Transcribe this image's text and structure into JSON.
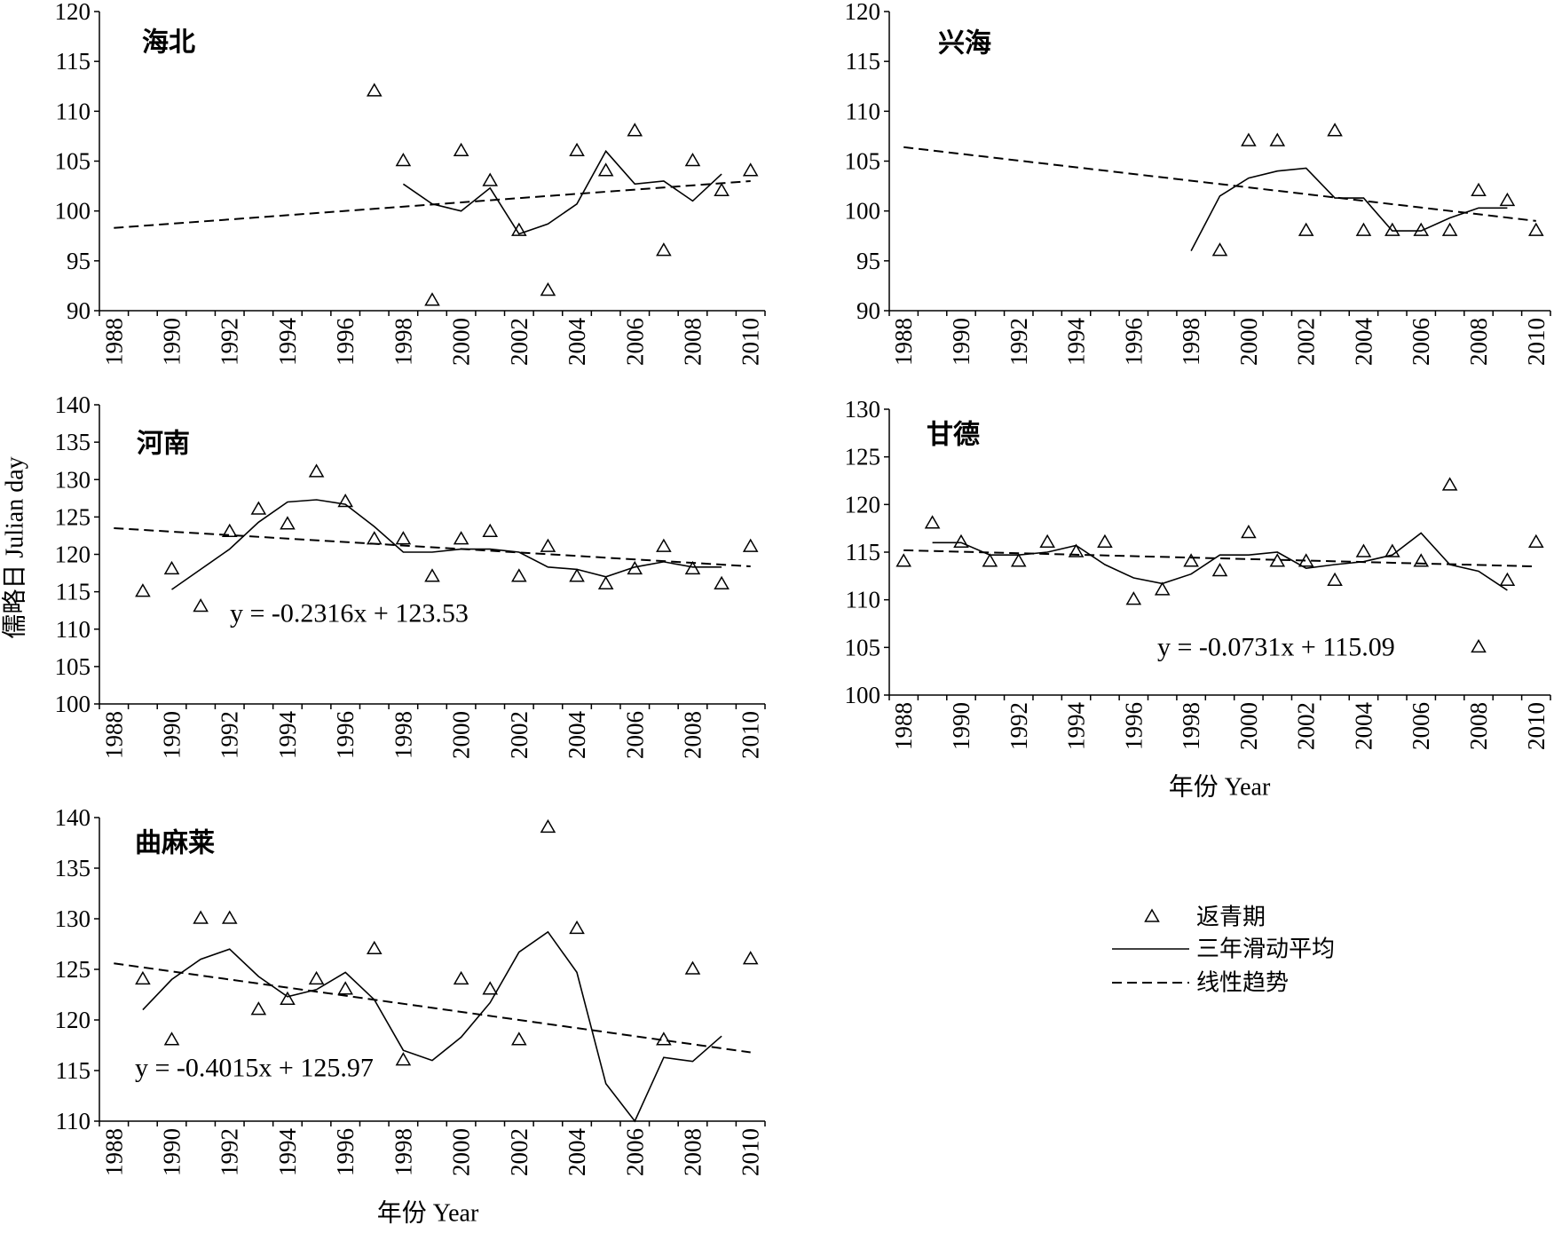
{
  "chart_data": [
    {
      "type": "line",
      "title": "海北",
      "x": [
        1988,
        1989,
        1990,
        1991,
        1992,
        1993,
        1994,
        1995,
        1996,
        1997,
        1998,
        1999,
        2000,
        2001,
        2002,
        2003,
        2004,
        2005,
        2006,
        2007,
        2008,
        2009,
        2010
      ],
      "xticks": [
        1988,
        1990,
        1992,
        1994,
        1996,
        1998,
        2000,
        2002,
        2004,
        2006,
        2008,
        2010
      ],
      "ylim": [
        90,
        120
      ],
      "yticks": [
        90,
        95,
        100,
        105,
        110,
        115,
        120
      ],
      "grid": false,
      "series": [
        {
          "legend_index": 0,
          "values": [
            null,
            null,
            null,
            null,
            null,
            null,
            null,
            null,
            null,
            112,
            105,
            91,
            106,
            103,
            98,
            92,
            106,
            104,
            108,
            96,
            105,
            102,
            104
          ]
        },
        {
          "legend_index": 1,
          "values": [
            null,
            null,
            null,
            null,
            null,
            null,
            null,
            null,
            null,
            null,
            102.7,
            100.7,
            100.0,
            102.3,
            97.7,
            98.7,
            100.7,
            106.0,
            102.7,
            103.0,
            101.0,
            103.7,
            null
          ]
        },
        {
          "legend_index": 2,
          "x": [
            1988,
            2010
          ],
          "values": [
            98.3,
            103.0
          ]
        }
      ]
    },
    {
      "type": "line",
      "title": "兴海",
      "x": [
        1988,
        1989,
        1990,
        1991,
        1992,
        1993,
        1994,
        1995,
        1996,
        1997,
        1998,
        1999,
        2000,
        2001,
        2002,
        2003,
        2004,
        2005,
        2006,
        2007,
        2008,
        2009,
        2010
      ],
      "xticks": [
        1988,
        1990,
        1992,
        1994,
        1996,
        1998,
        2000,
        2002,
        2004,
        2006,
        2008,
        2010
      ],
      "ylim": [
        90,
        120
      ],
      "yticks": [
        90,
        95,
        100,
        105,
        110,
        115,
        120
      ],
      "grid": false,
      "series": [
        {
          "legend_index": 0,
          "values": [
            null,
            null,
            null,
            null,
            null,
            null,
            null,
            null,
            null,
            null,
            null,
            96,
            107,
            107,
            98,
            108,
            98,
            98,
            98,
            98,
            102,
            101,
            98
          ]
        },
        {
          "legend_index": 1,
          "values": [
            null,
            null,
            null,
            null,
            null,
            null,
            null,
            null,
            null,
            null,
            96.0,
            101.5,
            103.3,
            104.0,
            104.3,
            101.3,
            101.3,
            98.0,
            98.0,
            99.3,
            100.3,
            100.3,
            null
          ]
        },
        {
          "legend_index": 2,
          "x": [
            1988,
            2010
          ],
          "values": [
            106.4,
            99.0
          ]
        }
      ]
    },
    {
      "type": "line",
      "title": "河南",
      "x": [
        1988,
        1989,
        1990,
        1991,
        1992,
        1993,
        1994,
        1995,
        1996,
        1997,
        1998,
        1999,
        2000,
        2001,
        2002,
        2003,
        2004,
        2005,
        2006,
        2007,
        2008,
        2009,
        2010
      ],
      "xticks": [
        1988,
        1990,
        1992,
        1994,
        1996,
        1998,
        2000,
        2002,
        2004,
        2006,
        2008,
        2010
      ],
      "ylim": [
        100,
        140
      ],
      "yticks": [
        100,
        105,
        110,
        115,
        120,
        125,
        130,
        135,
        140
      ],
      "grid": false,
      "ylabel": "儒略日 Julian day",
      "equation": "y = -0.2316x + 123.53",
      "series": [
        {
          "legend_index": 0,
          "values": [
            null,
            115,
            118,
            113,
            123,
            126,
            124,
            131,
            127,
            122,
            122,
            117,
            122,
            123,
            117,
            121,
            117,
            116,
            118,
            121,
            118,
            116,
            121
          ]
        },
        {
          "legend_index": 1,
          "values": [
            null,
            null,
            115.3,
            118.0,
            120.7,
            124.3,
            127.0,
            127.3,
            126.7,
            123.7,
            120.3,
            120.3,
            120.7,
            120.7,
            120.3,
            118.3,
            118.0,
            117.0,
            118.3,
            119.0,
            118.3,
            118.3,
            null
          ]
        },
        {
          "legend_index": 2,
          "x": [
            1988,
            2010
          ],
          "values": [
            123.5,
            118.4
          ]
        }
      ]
    },
    {
      "type": "line",
      "title": "甘德",
      "x": [
        1988,
        1989,
        1990,
        1991,
        1992,
        1993,
        1994,
        1995,
        1996,
        1997,
        1998,
        1999,
        2000,
        2001,
        2002,
        2003,
        2004,
        2005,
        2006,
        2007,
        2008,
        2009,
        2010
      ],
      "xticks": [
        1988,
        1990,
        1992,
        1994,
        1996,
        1998,
        2000,
        2002,
        2004,
        2006,
        2008,
        2010
      ],
      "ylim": [
        100,
        130
      ],
      "yticks": [
        100,
        105,
        110,
        115,
        120,
        125,
        130
      ],
      "grid": false,
      "xlabel": "年份 Year",
      "equation": "y = -0.0731x + 115.09",
      "series": [
        {
          "legend_index": 0,
          "values": [
            114,
            118,
            116,
            114,
            114,
            116,
            115,
            116,
            110,
            111,
            114,
            113,
            117,
            114,
            114,
            112,
            115,
            115,
            114,
            122,
            105,
            112,
            116
          ]
        },
        {
          "legend_index": 1,
          "values": [
            null,
            116.0,
            116.0,
            114.7,
            114.7,
            115.0,
            115.7,
            113.7,
            112.3,
            111.7,
            112.7,
            114.7,
            114.7,
            115.0,
            113.3,
            113.7,
            114.0,
            114.7,
            117.0,
            113.7,
            113.0,
            111.0,
            null
          ]
        },
        {
          "legend_index": 2,
          "x": [
            1988,
            2010
          ],
          "values": [
            115.2,
            113.5
          ]
        }
      ]
    },
    {
      "type": "line",
      "title": "曲麻莱",
      "x": [
        1988,
        1989,
        1990,
        1991,
        1992,
        1993,
        1994,
        1995,
        1996,
        1997,
        1998,
        1999,
        2000,
        2001,
        2002,
        2003,
        2004,
        2005,
        2006,
        2007,
        2008,
        2009,
        2010
      ],
      "xticks": [
        1988,
        1990,
        1992,
        1994,
        1996,
        1998,
        2000,
        2002,
        2004,
        2006,
        2008,
        2010
      ],
      "ylim": [
        110,
        140
      ],
      "yticks": [
        110,
        115,
        120,
        125,
        130,
        135,
        140
      ],
      "grid": false,
      "xlabel": "年份 Year",
      "equation": "y = -0.4015x + 125.97",
      "series": [
        {
          "legend_index": 0,
          "values": [
            null,
            124,
            118,
            130,
            130,
            121,
            122,
            124,
            123,
            127,
            116,
            null,
            124,
            123,
            118,
            139,
            129,
            null,
            null,
            118,
            125,
            null,
            126
          ]
        },
        {
          "legend_index": 1,
          "values": [
            null,
            121.0,
            124.0,
            126.0,
            127.0,
            124.3,
            122.3,
            123.0,
            124.7,
            122.0,
            117.0,
            116.0,
            118.3,
            121.7,
            126.7,
            128.7,
            124.7,
            113.7,
            110.0,
            116.3,
            115.9,
            118.4,
            null
          ]
        },
        {
          "legend_index": 2,
          "x": [
            1988,
            2010
          ],
          "values": [
            125.6,
            116.8
          ]
        }
      ]
    }
  ],
  "legend": {
    "placement": "bottom-right",
    "items": [
      {
        "label": "返青期",
        "symbol": "triangle"
      },
      {
        "label": "三年滑动平均",
        "symbol": "solid-line"
      },
      {
        "label": "线性趋势",
        "symbol": "dashed-line"
      }
    ]
  },
  "colors": {
    "ink": "#000000",
    "background": "#ffffff"
  }
}
